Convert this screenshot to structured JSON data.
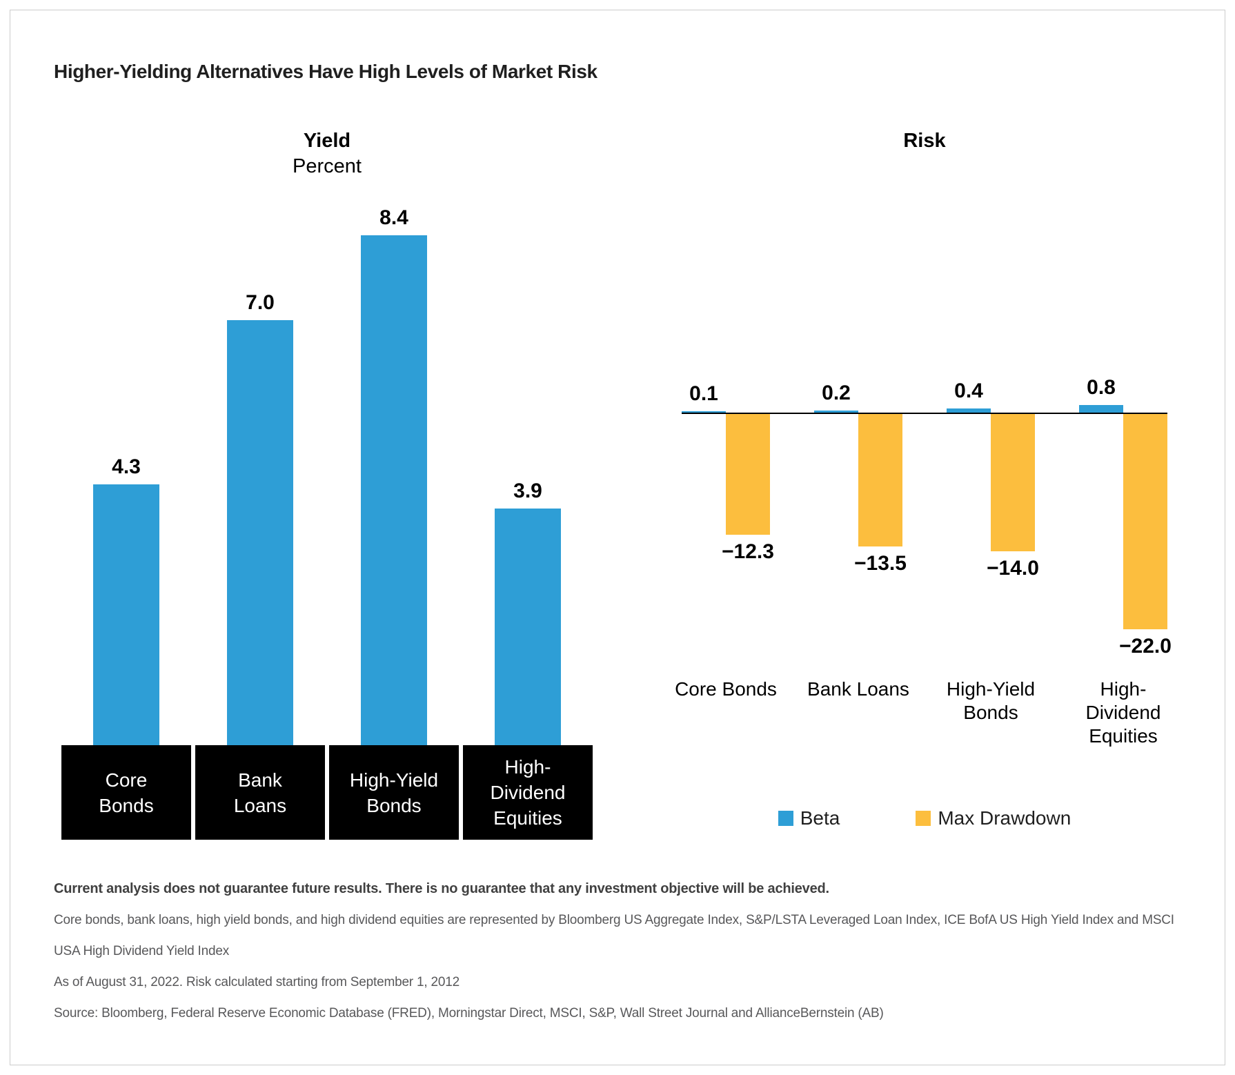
{
  "title": "Higher-Yielding Alternatives Have High Levels of Market Risk",
  "colors": {
    "beta_blue": "#2E9ED6",
    "drawdown_yellow": "#FCBE3E",
    "category_box_black": "#000000",
    "frame_border": "#cccccc"
  },
  "chart_data": [
    {
      "type": "bar",
      "title": "Yield",
      "subtitle": "Percent",
      "categories": [
        "Core Bonds",
        "Bank Loans",
        "High-Yield Bonds",
        "High-Dividend Equities"
      ],
      "category_lines": [
        [
          "Core",
          "Bonds"
        ],
        [
          "Bank",
          "Loans"
        ],
        [
          "High-Yield",
          "Bonds"
        ],
        [
          "High-",
          "Dividend",
          "Equities"
        ]
      ],
      "values": [
        4.3,
        7.0,
        8.4,
        3.9
      ],
      "value_labels": [
        "4.3",
        "7.0",
        "8.4",
        "3.9"
      ],
      "bar_color": "#2E9ED6",
      "ylim": [
        0,
        8.4
      ],
      "grid": false,
      "category_style": "black-box-white-text"
    },
    {
      "type": "bar",
      "title": "Risk",
      "categories": [
        "Core Bonds",
        "Bank Loans",
        "High-Yield Bonds",
        "High-Dividend Equities"
      ],
      "category_lines": [
        [
          "Core Bonds"
        ],
        [
          "Bank Loans"
        ],
        [
          "High-Yield",
          "Bonds"
        ],
        [
          "High-",
          "Dividend",
          "Equities"
        ]
      ],
      "series": [
        {
          "name": "Beta",
          "color": "#2E9ED6",
          "values": [
            0.1,
            0.2,
            0.4,
            0.8
          ],
          "labels": [
            "0.1",
            "0.2",
            "0.4",
            "0.8"
          ]
        },
        {
          "name": "Max Drawdown",
          "color": "#FCBE3E",
          "values": [
            -12.3,
            -13.5,
            -14.0,
            -22.0
          ],
          "labels": [
            "−12.3",
            "−13.5",
            "−14.0",
            "−22.0"
          ]
        }
      ],
      "baseline": 0,
      "grid": false,
      "legend_position": "bottom-center"
    }
  ],
  "footnotes": {
    "bold_line": "Current analysis does not guarantee future results. There is no guarantee that any investment objective will be achieved.",
    "lines": [
      "Core bonds, bank loans, high yield bonds, and high dividend equities are represented by Bloomberg US Aggregate Index, S&P/LSTA Leveraged Loan Index, ICE BofA US High Yield Index and MSCI",
      "USA High Dividend Yield Index",
      "As of August 31, 2022. Risk calculated starting from September 1, 2012",
      "Source: Bloomberg, Federal Reserve Economic Database (FRED), Morningstar Direct, MSCI, S&P, Wall Street Journal and AllianceBernstein (AB)"
    ]
  }
}
